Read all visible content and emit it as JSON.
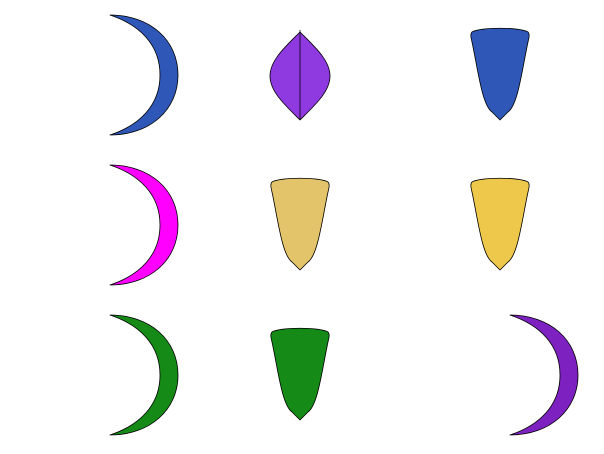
{
  "shapes": [
    {
      "row": 0,
      "col": 0,
      "kind": "crescent",
      "color": "#2f57b8"
    },
    {
      "row": 0,
      "col": 1,
      "kind": "lens-leaf",
      "color": "#8f3ae0"
    },
    {
      "row": 0,
      "col": 2,
      "kind": "cone",
      "color": "#2f57b8"
    },
    {
      "row": 1,
      "col": 0,
      "kind": "crescent",
      "color": "#ff00ff"
    },
    {
      "row": 1,
      "col": 1,
      "kind": "cone",
      "color": "#e3c46a"
    },
    {
      "row": 1,
      "col": 2,
      "kind": "cone",
      "color": "#eec84b"
    },
    {
      "row": 2,
      "col": 0,
      "kind": "crescent",
      "color": "#168a16"
    },
    {
      "row": 2,
      "col": 1,
      "kind": "cone",
      "color": "#168a16"
    },
    {
      "row": 2,
      "col": 2,
      "kind": "crescent",
      "color": "#7d22c0"
    }
  ]
}
